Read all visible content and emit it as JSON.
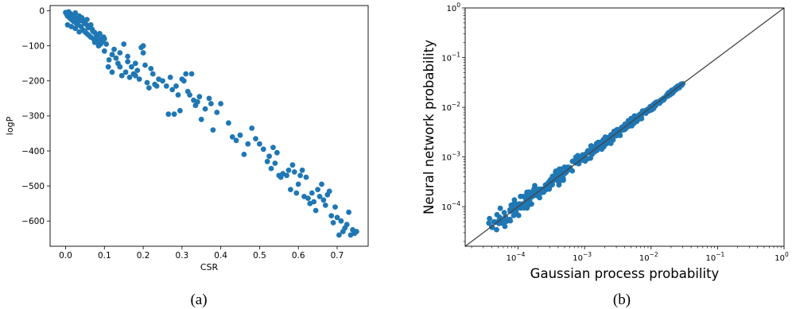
{
  "chart_data": [
    {
      "type": "scatter",
      "caption": "(a)",
      "xlabel": "CSR",
      "ylabel": "logP",
      "xlim": [
        -0.04,
        0.78
      ],
      "ylim": [
        -672,
        15
      ],
      "xticks": [
        0.0,
        0.1,
        0.2,
        0.3,
        0.4,
        0.5,
        0.6,
        0.7
      ],
      "xtick_labels": [
        "0.0",
        "0.1",
        "0.2",
        "0.3",
        "0.4",
        "0.5",
        "0.6",
        "0.7"
      ],
      "yticks": [
        0,
        -100,
        -200,
        -300,
        -400,
        -500,
        -600
      ],
      "ytick_labels": [
        "0",
        "−100",
        "−200",
        "−300",
        "−400",
        "−500",
        "−600"
      ],
      "grid": false,
      "series": [
        {
          "color": "#1f77b4",
          "points": [
            [
              0.0,
              -5
            ],
            [
              0.003,
              -10
            ],
            [
              0.005,
              -15
            ],
            [
              0.008,
              -3
            ],
            [
              0.01,
              -20
            ],
            [
              0.012,
              -8
            ],
            [
              0.015,
              -25
            ],
            [
              0.018,
              -12
            ],
            [
              0.02,
              -30
            ],
            [
              0.022,
              -18
            ],
            [
              0.025,
              -6
            ],
            [
              0.027,
              -35
            ],
            [
              0.03,
              -22
            ],
            [
              0.032,
              -40
            ],
            [
              0.035,
              -15
            ],
            [
              0.037,
              -28
            ],
            [
              0.04,
              -45
            ],
            [
              0.042,
              -20
            ],
            [
              0.045,
              -55
            ],
            [
              0.048,
              -33
            ],
            [
              0.05,
              -60
            ],
            [
              0.052,
              -38
            ],
            [
              0.055,
              -65
            ],
            [
              0.058,
              -48
            ],
            [
              0.06,
              -70
            ],
            [
              0.062,
              -42
            ],
            [
              0.065,
              -75
            ],
            [
              0.068,
              -52
            ],
            [
              0.07,
              -58
            ],
            [
              0.072,
              -80
            ],
            [
              0.075,
              -62
            ],
            [
              0.078,
              -85
            ],
            [
              0.08,
              -70
            ],
            [
              0.082,
              -90
            ],
            [
              0.085,
              -78
            ],
            [
              0.088,
              -65
            ],
            [
              0.09,
              -95
            ],
            [
              0.092,
              -83
            ],
            [
              0.095,
              -88
            ],
            [
              0.098,
              -75
            ],
            [
              0.1,
              -115
            ],
            [
              0.105,
              -95
            ],
            [
              0.11,
              -160
            ],
            [
              0.112,
              -140
            ],
            [
              0.12,
              -125
            ],
            [
              0.125,
              -110
            ],
            [
              0.13,
              -135
            ],
            [
              0.135,
              -150
            ],
            [
              0.14,
              -160
            ],
            [
              0.145,
              -185
            ],
            [
              0.15,
              -95
            ],
            [
              0.155,
              -175
            ],
            [
              0.16,
              -130
            ],
            [
              0.165,
              -190
            ],
            [
              0.17,
              -160
            ],
            [
              0.175,
              -180
            ],
            [
              0.18,
              -185
            ],
            [
              0.185,
              -170
            ],
            [
              0.19,
              -195
            ],
            [
              0.195,
              -105
            ],
            [
              0.2,
              -100
            ],
            [
              0.205,
              -155
            ],
            [
              0.21,
              -205
            ],
            [
              0.215,
              -220
            ],
            [
              0.22,
              -165
            ],
            [
              0.225,
              -180
            ],
            [
              0.23,
              -210
            ],
            [
              0.235,
              -215
            ],
            [
              0.24,
              -195
            ],
            [
              0.25,
              -200
            ],
            [
              0.26,
              -215
            ],
            [
              0.265,
              -295
            ],
            [
              0.27,
              -190
            ],
            [
              0.275,
              -225
            ],
            [
              0.28,
              -295
            ],
            [
              0.285,
              -215
            ],
            [
              0.29,
              -240
            ],
            [
              0.295,
              -285
            ],
            [
              0.3,
              -195
            ],
            [
              0.305,
              -200
            ],
            [
              0.31,
              -180
            ],
            [
              0.315,
              -230
            ],
            [
              0.32,
              -240
            ],
            [
              0.325,
              -180
            ],
            [
              0.33,
              -255
            ],
            [
              0.335,
              -270
            ],
            [
              0.34,
              -260
            ],
            [
              0.345,
              -245
            ],
            [
              0.35,
              -310
            ],
            [
              0.36,
              -280
            ],
            [
              0.37,
              -250
            ],
            [
              0.375,
              -265
            ],
            [
              0.38,
              -340
            ],
            [
              0.39,
              -290
            ],
            [
              0.4,
              -265
            ],
            [
              0.42,
              -320
            ],
            [
              0.43,
              -360
            ],
            [
              0.44,
              -370
            ],
            [
              0.45,
              -355
            ],
            [
              0.46,
              -410
            ],
            [
              0.47,
              -380
            ],
            [
              0.48,
              -335
            ],
            [
              0.49,
              -365
            ],
            [
              0.5,
              -380
            ],
            [
              0.51,
              -395
            ],
            [
              0.52,
              -430
            ],
            [
              0.525,
              -415
            ],
            [
              0.53,
              -450
            ],
            [
              0.535,
              -390
            ],
            [
              0.54,
              -435
            ],
            [
              0.545,
              -405
            ],
            [
              0.55,
              -470
            ],
            [
              0.555,
              -475
            ],
            [
              0.56,
              -465
            ],
            [
              0.57,
              -470
            ],
            [
              0.575,
              -455
            ],
            [
              0.58,
              -510
            ],
            [
              0.585,
              -440
            ],
            [
              0.59,
              -460
            ],
            [
              0.595,
              -520
            ],
            [
              0.6,
              -495
            ],
            [
              0.605,
              -470
            ],
            [
              0.61,
              -455
            ],
            [
              0.615,
              -530
            ],
            [
              0.62,
              -475
            ],
            [
              0.625,
              -535
            ],
            [
              0.63,
              -550
            ],
            [
              0.635,
              -520
            ],
            [
              0.64,
              -545
            ],
            [
              0.645,
              -570
            ],
            [
              0.65,
              -510
            ],
            [
              0.655,
              -530
            ],
            [
              0.66,
              -495
            ],
            [
              0.665,
              -540
            ],
            [
              0.67,
              -555
            ],
            [
              0.675,
              -525
            ],
            [
              0.68,
              -515
            ],
            [
              0.685,
              -585
            ],
            [
              0.69,
              -605
            ],
            [
              0.695,
              -560
            ],
            [
              0.7,
              -590
            ],
            [
              0.705,
              -640
            ],
            [
              0.71,
              -600
            ],
            [
              0.715,
              -630
            ],
            [
              0.72,
              -620
            ],
            [
              0.725,
              -610
            ],
            [
              0.73,
              -575
            ],
            [
              0.735,
              -640
            ],
            [
              0.74,
              -625
            ],
            [
              0.745,
              -635
            ],
            [
              0.75,
              -630
            ],
            [
              0.005,
              -40
            ],
            [
              0.015,
              -45
            ],
            [
              0.025,
              -50
            ],
            [
              0.035,
              -60
            ],
            [
              0.045,
              -30
            ],
            [
              0.055,
              -25
            ],
            [
              0.065,
              -40
            ],
            [
              0.075,
              -90
            ],
            [
              0.085,
              -100
            ],
            [
              0.1,
              -80
            ],
            [
              0.12,
              -175
            ],
            [
              0.14,
              -120
            ],
            [
              0.16,
              -145
            ],
            [
              0.18,
              -150
            ],
            [
              0.2,
              -120
            ]
          ]
        }
      ]
    },
    {
      "type": "scatter",
      "caption": "(b)",
      "xlabel": "Gaussian process probability",
      "ylabel": "Neural network probability",
      "xscale": "log",
      "yscale": "log",
      "xlim": [
        1.6e-05,
        1
      ],
      "ylim": [
        1.6e-05,
        1
      ],
      "xticks": [
        0.0001,
        0.001,
        0.01,
        0.1,
        1
      ],
      "xtick_labels": [
        [
          "10",
          "−4"
        ],
        [
          "10",
          "−3"
        ],
        [
          "10",
          "−2"
        ],
        [
          "10",
          "−1"
        ],
        [
          "10",
          "0"
        ]
      ],
      "yticks": [
        0.0001,
        0.001,
        0.01,
        0.1,
        1
      ],
      "ytick_labels": [
        [
          "10",
          "−4"
        ],
        [
          "10",
          "−3"
        ],
        [
          "10",
          "−2"
        ],
        [
          "10",
          "−1"
        ],
        [
          "10",
          "0"
        ]
      ],
      "grid": false,
      "reference_line": "y = x",
      "series": [
        {
          "color": "#1f77b4",
          "points_range": [
            4e-05,
            0.03
          ]
        }
      ]
    }
  ]
}
